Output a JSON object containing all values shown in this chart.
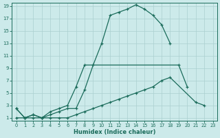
{
  "bg_color": "#cceaea",
  "line_color": "#1a6b5a",
  "grid_color": "#aacfcf",
  "xlabel": "Humidex (Indice chaleur)",
  "xlim": [
    -0.5,
    23.5
  ],
  "ylim": [
    0.5,
    19.5
  ],
  "xticks": [
    0,
    1,
    2,
    3,
    4,
    5,
    6,
    7,
    8,
    9,
    10,
    11,
    12,
    13,
    14,
    15,
    16,
    17,
    18,
    19,
    20,
    21,
    22,
    23
  ],
  "yticks": [
    1,
    3,
    5,
    7,
    9,
    11,
    13,
    15,
    17,
    19
  ],
  "line1_x": [
    0,
    1,
    2,
    3,
    4,
    5,
    6,
    7,
    8,
    9,
    10,
    11,
    12,
    13,
    14,
    15,
    16,
    17,
    18
  ],
  "line1_y": [
    2.5,
    1.0,
    1.5,
    1.0,
    1.5,
    2.0,
    2.5,
    2.5,
    5.5,
    9.5,
    13.0,
    17.5,
    18.0,
    18.5,
    19.2,
    18.5,
    17.5,
    16.0,
    13.0
  ],
  "line2_x": [
    0,
    1,
    2,
    3,
    4,
    5,
    6,
    7,
    8,
    19,
    20
  ],
  "line2_y": [
    2.5,
    1.0,
    1.5,
    1.0,
    2.0,
    2.5,
    3.0,
    6.0,
    9.5,
    9.5,
    6.0
  ],
  "line3_x": [
    0,
    1,
    2,
    3,
    4,
    5,
    6,
    7,
    8,
    9,
    10,
    11,
    12,
    13,
    14,
    15,
    16,
    17,
    18,
    21,
    22
  ],
  "line3_y": [
    1.0,
    1.0,
    1.0,
    1.0,
    1.0,
    1.0,
    1.0,
    1.5,
    2.0,
    2.5,
    3.0,
    3.5,
    4.0,
    4.5,
    5.0,
    5.5,
    6.0,
    7.0,
    7.5,
    3.5,
    3.0
  ]
}
